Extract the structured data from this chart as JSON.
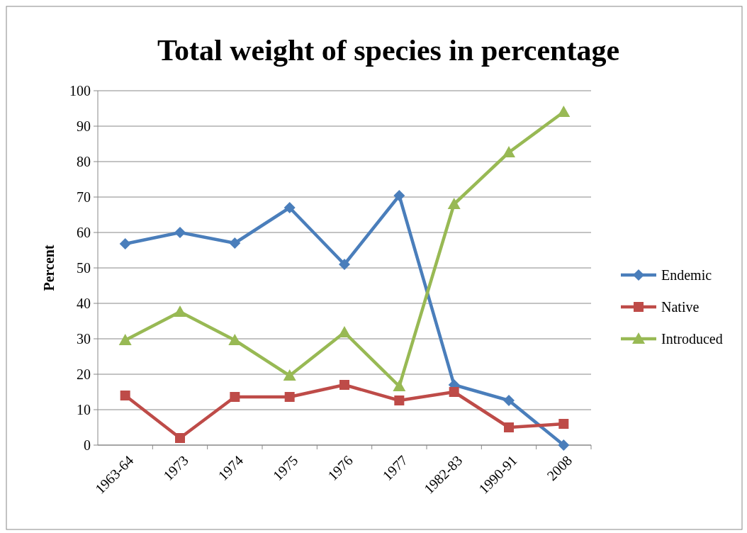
{
  "chart_data": {
    "type": "line",
    "title": "Total weight of species in percentage",
    "ylabel": "Percent",
    "categories": [
      "1963-64",
      "1973",
      "1974",
      "1975",
      "1976",
      "1977",
      "1982-83",
      "1990-91",
      "2008"
    ],
    "series": [
      {
        "name": "Endemic",
        "color": "#4a7ebb",
        "marker": "diamond",
        "values": [
          56.8,
          60,
          57,
          67,
          51,
          70.4,
          17,
          12.6,
          0
        ]
      },
      {
        "name": "Native",
        "color": "#be4b48",
        "marker": "square",
        "values": [
          14,
          2,
          13.6,
          13.6,
          17,
          12.6,
          15,
          5,
          6
        ]
      },
      {
        "name": "Introduced",
        "color": "#98b954",
        "marker": "triangle",
        "values": [
          29.6,
          37.6,
          29.6,
          19.6,
          31.8,
          16.6,
          68,
          82.6,
          94
        ]
      }
    ],
    "ylim": [
      0,
      100
    ],
    "yticks": [
      0,
      10,
      20,
      30,
      40,
      50,
      60,
      70,
      80,
      90,
      100
    ],
    "grid": "y",
    "legend": "right",
    "line_style": "solid"
  }
}
